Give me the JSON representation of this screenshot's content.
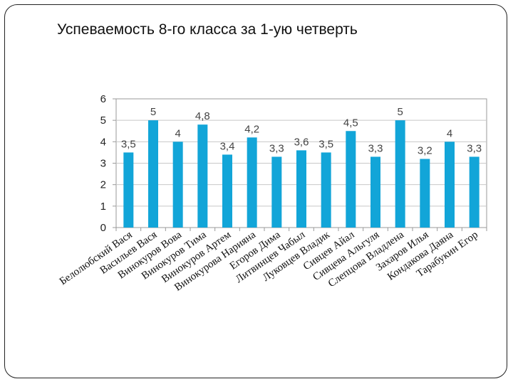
{
  "slide": {
    "title": "Успеваемость 8-го класса за 1-ую четверть"
  },
  "chart_data": {
    "type": "bar",
    "title": "",
    "xlabel": "",
    "ylabel": "",
    "ylim": [
      0,
      6
    ],
    "yticks": [
      "0",
      "1",
      "2",
      "3",
      "4",
      "5",
      "6"
    ],
    "grid": true,
    "legend": "none",
    "bar_color": "#12A5D8",
    "categories": [
      "Белолюбский Вася",
      "Васильев Вася",
      "Винокуров Вова",
      "Винокуров Тима",
      "Винокуров Артем",
      "Винокурова Нарияна",
      "Егоров Дима",
      "Литвинцев Чабыл",
      "Луковцев Владик",
      "Сивцев Айал",
      "Сивцева Альгуля",
      "Слепцова Владлена",
      "Захаров Илья",
      "Кондакова Даяна",
      "Тарабукин Егор"
    ],
    "values": [
      3.5,
      5,
      4,
      4.8,
      3.4,
      4.2,
      3.3,
      3.6,
      3.5,
      4.5,
      3.3,
      5,
      3.2,
      4,
      3.3
    ],
    "data_labels": [
      "3,5",
      "5",
      "4",
      "4,8",
      "3,4",
      "4,2",
      "3,3",
      "3,6",
      "3,5",
      "4,5",
      "3,3",
      "5",
      "3,2",
      "4",
      "3,3"
    ]
  }
}
